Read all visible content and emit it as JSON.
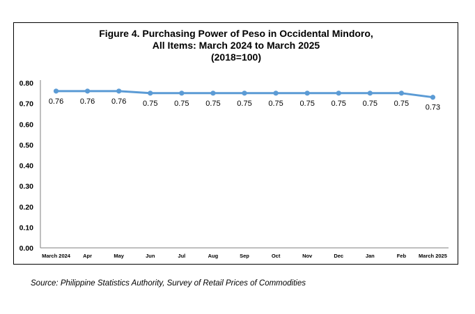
{
  "chart_data": {
    "type": "line",
    "title_lines": [
      "Figure 4. Purchasing Power of Peso in Occidental Mindoro,",
      "All Items: March 2024 to March 2025",
      "(2018=100)"
    ],
    "categories": [
      "March 2024",
      "Apr",
      "May",
      "Jun",
      "Jul",
      "Aug",
      "Sep",
      "Oct",
      "Nov",
      "Dec",
      "Jan",
      "Feb",
      "March 2025"
    ],
    "values": [
      0.76,
      0.76,
      0.76,
      0.75,
      0.75,
      0.75,
      0.75,
      0.75,
      0.75,
      0.75,
      0.75,
      0.75,
      0.73
    ],
    "data_labels": [
      "0.76",
      "0.76",
      "0.76",
      "0.75",
      "0.75",
      "0.75",
      "0.75",
      "0.75",
      "0.75",
      "0.75",
      "0.75",
      "0.75",
      "0.73"
    ],
    "yticks": [
      "0.00",
      "0.10",
      "0.20",
      "0.30",
      "0.40",
      "0.50",
      "0.60",
      "0.70",
      "0.80"
    ],
    "ylim": [
      0,
      0.8
    ],
    "grid": false,
    "line_color": "#5b9bd5"
  },
  "source": "Source: Philippine Statistics Authority, Survey of Retail Prices of Commodities"
}
